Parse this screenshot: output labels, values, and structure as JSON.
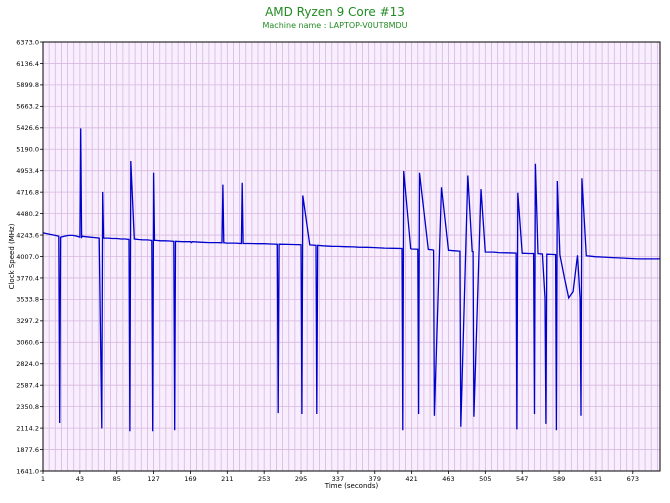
{
  "chart_data": {
    "type": "line",
    "title": "AMD Ryzen 9 Core #13",
    "subtitle": "Machine name : LAPTOP-V0UT8MDU",
    "xlabel": "Time (seconds)",
    "ylabel": "Clock Speed (MHz)",
    "xlim": [
      1,
      704
    ],
    "ylim": [
      1641.0,
      6373.0
    ],
    "x_ticks": [
      "1",
      "43",
      "85",
      "127",
      "169",
      "211",
      "253",
      "295",
      "337",
      "379",
      "421",
      "463",
      "505",
      "547",
      "589",
      "631",
      "673"
    ],
    "y_ticks": [
      "1641.0",
      "1877.6",
      "2114.2",
      "2350.8",
      "2587.4",
      "2824.0",
      "3060.6",
      "3297.2",
      "3533.8",
      "3770.4",
      "4007.0",
      "4243.6",
      "4480.2",
      "4716.8",
      "4953.4",
      "5190.0",
      "5426.6",
      "5663.2",
      "5899.8",
      "6136.4",
      "6373.0"
    ],
    "grid": true,
    "colors": {
      "series": "#0000cc",
      "plot_background": "#f8eefe",
      "grid": "#d8b8e0",
      "title": "#228b22"
    },
    "series": [
      {
        "x": [
          1,
          5,
          10,
          15,
          19,
          20,
          21,
          25,
          30,
          35,
          40,
          43,
          44,
          45,
          46,
          50,
          55,
          60,
          65,
          68,
          69,
          70,
          75,
          80,
          85,
          90,
          95,
          99,
          100,
          101,
          105,
          110,
          115,
          120,
          125,
          126,
          127,
          128,
          130,
          135,
          140,
          145,
          150,
          151,
          152,
          160,
          169,
          170,
          171,
          180,
          190,
          200,
          205,
          206,
          207,
          211,
          220,
          227,
          228,
          229,
          235,
          245,
          253,
          260,
          268,
          269,
          270,
          280,
          290,
          295,
          296,
          297,
          305,
          312,
          313,
          314,
          320,
          330,
          337,
          345,
          355,
          360,
          370,
          379,
          390,
          400,
          410,
          411,
          412,
          420,
          421,
          428,
          429,
          430,
          440,
          445,
          446,
          447,
          455,
          463,
          470,
          475,
          476,
          477,
          485,
          490,
          491,
          492,
          500,
          505,
          515,
          520,
          530,
          540,
          541,
          542,
          547,
          555,
          560,
          561,
          562,
          565,
          570,
          573,
          574,
          575,
          580,
          585,
          586,
          587,
          590,
          595,
          600,
          605,
          610,
          613,
          614,
          615,
          620,
          625,
          630,
          640,
          650,
          660,
          670,
          680,
          690,
          704
        ],
        "y": [
          4270,
          4260,
          4250,
          4240,
          4230,
          2170,
          4220,
          4230,
          4240,
          4240,
          4230,
          4220,
          5420,
          4220,
          4230,
          4225,
          4220,
          4215,
          4210,
          2110,
          4720,
          4210,
          4210,
          4205,
          4205,
          4200,
          4200,
          4195,
          2080,
          5060,
          4200,
          4195,
          4190,
          4190,
          4185,
          2080,
          4930,
          4185,
          4185,
          4180,
          4180,
          4178,
          4175,
          2090,
          4175,
          4170,
          4170,
          4160,
          4170,
          4165,
          4160,
          4160,
          4158,
          4800,
          4158,
          4155,
          4155,
          4150,
          4820,
          4150,
          4150,
          4148,
          4148,
          4145,
          4143,
          2280,
          4143,
          4140,
          4138,
          4137,
          2270,
          4680,
          4135,
          4130,
          2270,
          4130,
          4125,
          4120,
          4118,
          4115,
          4113,
          4110,
          4108,
          4105,
          4100,
          4097,
          4095,
          2090,
          4950,
          4093,
          4090,
          4088,
          2270,
          4930,
          4085,
          4080,
          4077,
          2250,
          4770,
          4075,
          4070,
          4067,
          4065,
          2130,
          4900,
          4062,
          4060,
          2240,
          4750,
          4057,
          4055,
          4050,
          4048,
          4045,
          2100,
          4710,
          4043,
          4040,
          4040,
          2270,
          5030,
          4038,
          4035,
          3550,
          2160,
          4032,
          4030,
          4028,
          2090,
          4840,
          4025,
          3780,
          3550,
          3620,
          4020,
          3550,
          2250,
          4870,
          4015,
          4010,
          4005,
          4000,
          3995,
          3990,
          3985,
          3980,
          3980,
          3980
        ]
      }
    ]
  }
}
